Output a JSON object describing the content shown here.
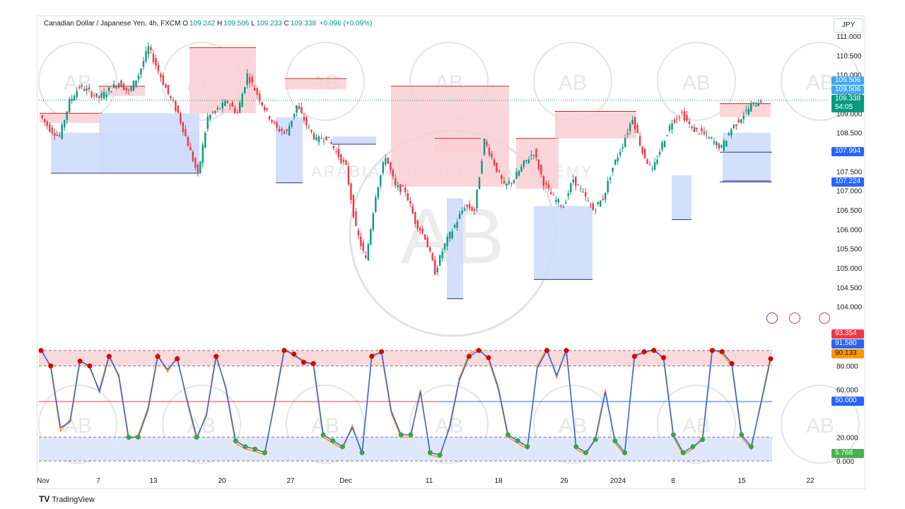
{
  "header": {
    "symbol": "Canadian Dollar / Japanese Yen, 4h, FXCM",
    "open_label": "O",
    "open": "109.242",
    "high_label": "H",
    "high": "109.506",
    "low_label": "L",
    "low": "109.233",
    "close_label": "C",
    "close": "109.338",
    "change": "+0.096 (+0.09%)"
  },
  "currency_button": "JPY",
  "price_tags": {
    "high": "109.506",
    "last": "109.506",
    "close": "109.338",
    "countdown": "54:05",
    "level_1": "107.994",
    "level_2": "107.224"
  },
  "osc_tags": {
    "k": "93.354",
    "d": "91.580",
    "third": "90.133",
    "mid": "50.000",
    "low": "5.768"
  },
  "branding": {
    "logo": "TV",
    "name": "TradingView"
  },
  "watermark": {
    "monogram": "AB",
    "text": "ARABIAN BUSINESS ACADEMY"
  },
  "colors": {
    "up": "#089981",
    "down": "#f23645",
    "blue": "#2962ff",
    "orange": "#ff9800",
    "blue_zone": "#cfdcfb",
    "red_zone": "#f9cfd3"
  },
  "chart_data": [
    {
      "type": "candlestick",
      "title": "Canadian Dollar / Japanese Yen, 4h, FXCM",
      "ylim": [
        103.7,
        111.2
      ],
      "y_ticks": [
        "104.000",
        "104.500",
        "105.000",
        "105.500",
        "106.000",
        "106.500",
        "107.000",
        "107.500",
        "108.000",
        "108.500",
        "109.000",
        "109.500",
        "110.000",
        "110.500",
        "111.000"
      ],
      "x_ticks": [
        "Nov",
        "7",
        "13",
        "20",
        "27",
        "Dec",
        "11",
        "18",
        "26",
        "2024",
        "8",
        "15",
        "22"
      ],
      "last_price": 109.338,
      "price_path": [
        108.95,
        108.6,
        108.4,
        109.3,
        109.7,
        109.55,
        109.4,
        109.6,
        109.8,
        109.55,
        110.0,
        110.7,
        110.1,
        109.5,
        109.0,
        108.2,
        107.4,
        108.9,
        109.1,
        109.3,
        109.0,
        110.0,
        109.5,
        109.0,
        108.6,
        108.5,
        109.2,
        108.7,
        108.3,
        108.4,
        108.0,
        107.6,
        106.0,
        105.2,
        106.9,
        107.9,
        107.1,
        107.0,
        106.2,
        105.8,
        104.9,
        105.6,
        106.1,
        106.6,
        106.5,
        108.3,
        107.7,
        107.1,
        107.3,
        107.7,
        108.0,
        107.2,
        106.8,
        106.6,
        107.3,
        106.9,
        106.5,
        106.8,
        107.6,
        108.2,
        108.9,
        108.0,
        107.5,
        108.2,
        108.8,
        109.0,
        108.6,
        108.5,
        108.3,
        108.1,
        108.6,
        108.9,
        109.2,
        109.34
      ],
      "supply_zones": [
        {
          "top": 109.0,
          "bottom": 108.75
        },
        {
          "top": 109.7,
          "bottom": 109.45
        },
        {
          "top": 110.7,
          "bottom": 109.0
        },
        {
          "top": 109.9,
          "bottom": 109.62
        },
        {
          "top": 109.7,
          "bottom": 107.1
        },
        {
          "top": 108.35,
          "bottom": 108.0
        },
        {
          "top": 108.35,
          "bottom": 107.05
        },
        {
          "top": 109.05,
          "bottom": 108.35
        },
        {
          "top": 109.25,
          "bottom": 108.9
        }
      ],
      "demand_zones": [
        {
          "top": 108.5,
          "bottom": 107.45
        },
        {
          "top": 109.0,
          "bottom": 107.45
        },
        {
          "top": 108.9,
          "bottom": 107.2
        },
        {
          "top": 108.4,
          "bottom": 108.2
        },
        {
          "top": 106.8,
          "bottom": 104.2
        },
        {
          "top": 106.6,
          "bottom": 104.7
        },
        {
          "top": 107.4,
          "bottom": 106.25
        },
        {
          "top": 108.5,
          "bottom": 107.25
        }
      ],
      "levels": [
        107.994,
        107.224
      ]
    },
    {
      "type": "line",
      "title": "Stochastic",
      "ylim": [
        0,
        100
      ],
      "y_ticks": [
        "0.000",
        "20.000",
        "50.000",
        "60.000",
        "80.000"
      ],
      "bands": {
        "overbought": 80,
        "oversold": 20,
        "mid": 50
      },
      "series": [
        {
          "values": [
            95,
            78,
            25,
            35,
            86,
            78,
            60,
            90,
            70,
            18,
            22,
            45,
            90,
            75,
            88,
            50,
            18,
            40,
            90,
            60,
            15,
            10,
            8,
            5,
            50,
            95,
            88,
            85,
            80,
            20,
            15,
            10,
            30,
            5,
            90,
            90,
            40,
            20,
            20,
            60,
            5,
            3,
            30,
            70,
            90,
            95,
            85,
            60,
            20,
            15,
            10,
            80,
            95,
            70,
            95,
            10,
            5,
            20,
            60,
            15,
            5,
            90,
            90,
            95,
            85,
            20,
            5,
            10,
            20,
            95,
            90,
            80,
            20,
            10,
            50,
            88
          ]
        },
        {
          "values": [
            93,
            80,
            28,
            33,
            84,
            80,
            58,
            88,
            72,
            20,
            20,
            43,
            88,
            77,
            86,
            52,
            20,
            38,
            88,
            62,
            17,
            12,
            10,
            7,
            48,
            93,
            90,
            83,
            82,
            22,
            17,
            12,
            28,
            7,
            88,
            92,
            42,
            22,
            22,
            58,
            7,
            5,
            28,
            68,
            88,
            93,
            87,
            62,
            22,
            17,
            12,
            78,
            93,
            72,
            93,
            12,
            7,
            18,
            58,
            17,
            7,
            88,
            92,
            93,
            87,
            22,
            7,
            12,
            18,
            93,
            92,
            82,
            22,
            12,
            48,
            86
          ]
        }
      ],
      "last_values": [
        93.354,
        91.58,
        90.133
      ]
    }
  ]
}
